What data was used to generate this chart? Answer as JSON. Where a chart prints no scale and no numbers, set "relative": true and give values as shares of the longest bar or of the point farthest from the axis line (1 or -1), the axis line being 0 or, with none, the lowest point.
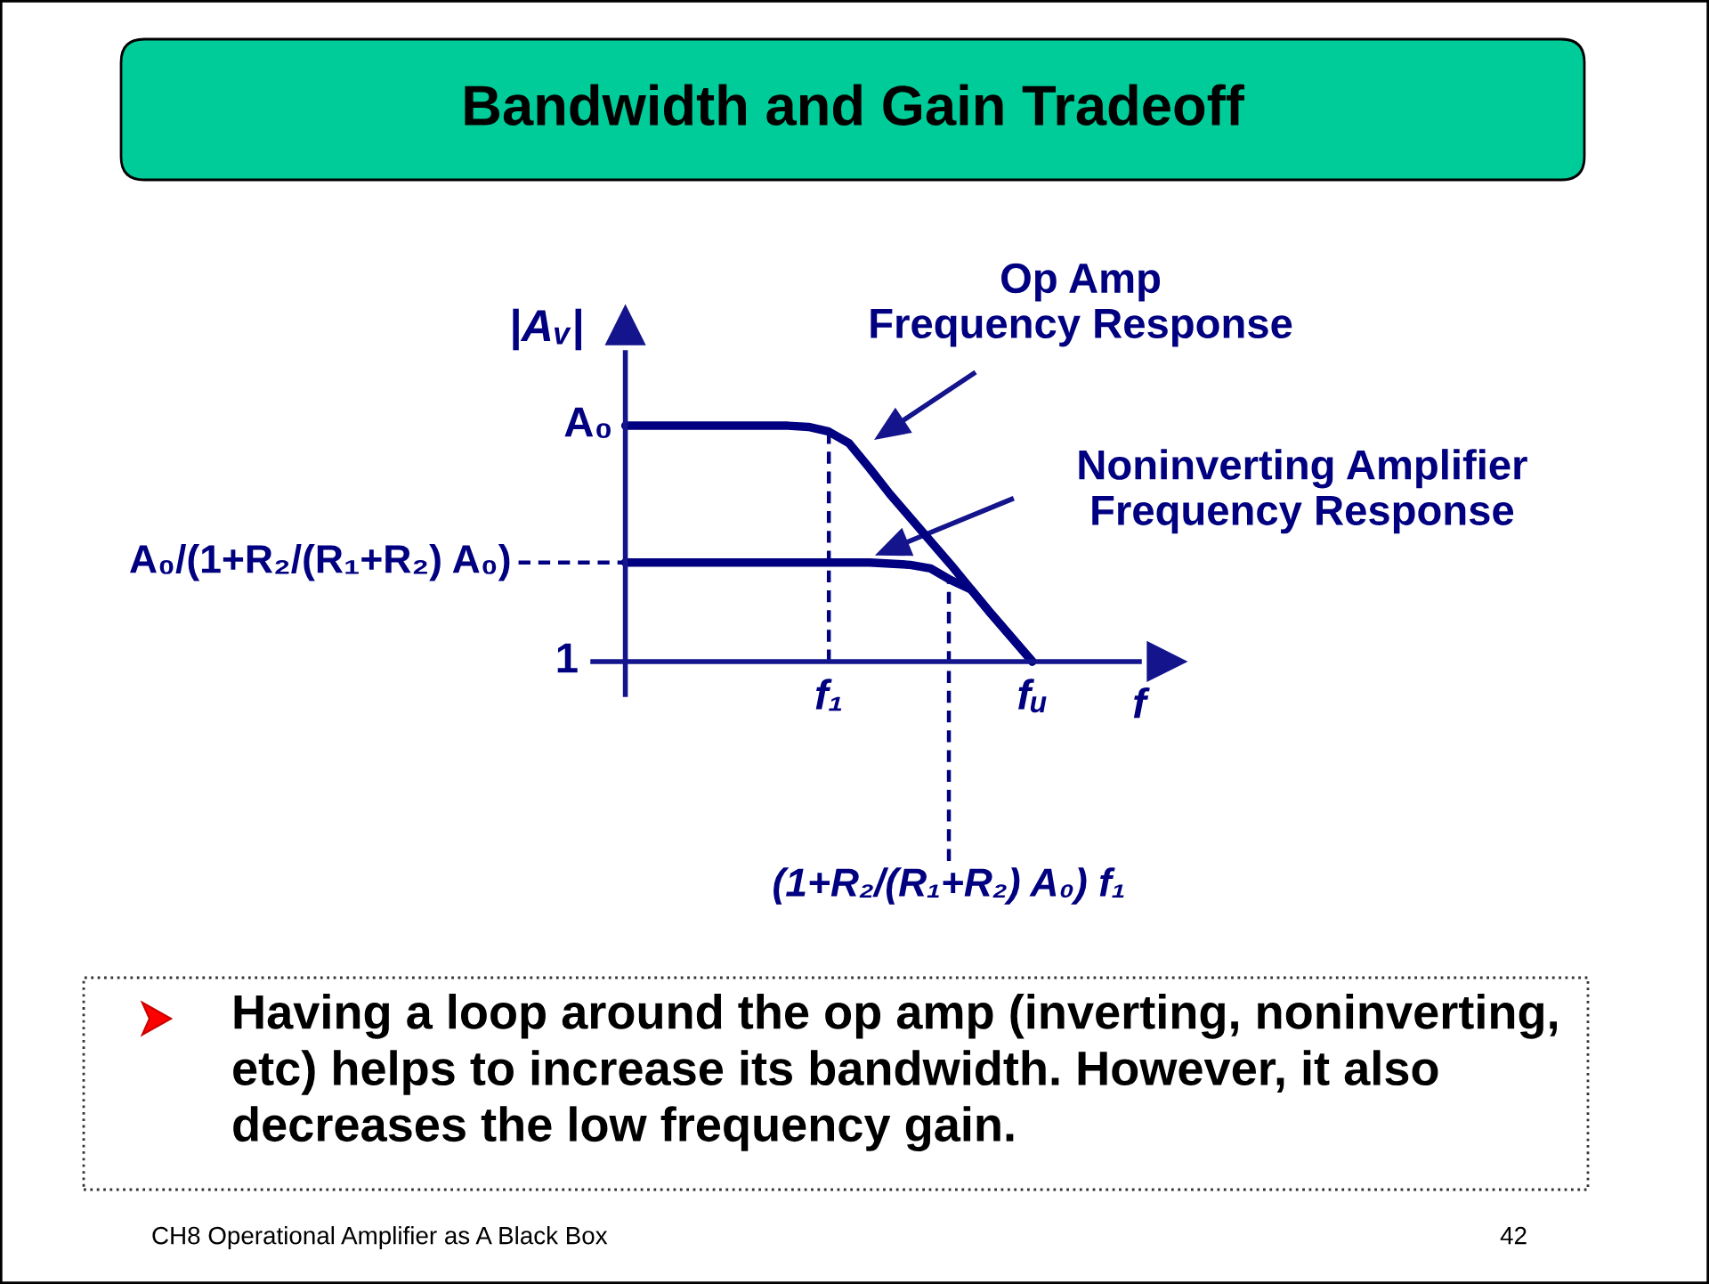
{
  "chart_data": {
    "type": "line",
    "title": "Bandwidth and Gain Tradeoff",
    "xlabel": "f",
    "ylabel": "|Aᵥ|",
    "relative": true,
    "categories": [
      null,
      null,
      null,
      null,
      null,
      null,
      null,
      null,
      null,
      null,
      "f₁",
      null,
      null,
      null,
      null,
      null,
      null,
      null,
      null,
      null,
      "fᵤ"
    ],
    "series": [
      {
        "name": "Op Amp\nFrequency Response",
        "color": "#000080",
        "values": [
          1,
          1,
          1,
          1,
          1,
          1,
          1,
          1,
          1,
          0.995,
          0.975,
          0.925,
          0.82,
          0.71,
          0.61,
          0.51,
          0.41,
          0.305,
          0.2,
          0.1,
          0
        ]
      },
      {
        "name": "Noninverting Amplifier\nFrequency Response",
        "color": "#000080",
        "values": [
          0.42,
          0.42,
          0.42,
          0.42,
          0.42,
          0.42,
          0.42,
          0.42,
          0.42,
          0.42,
          0.42,
          0.42,
          0.42,
          0.415,
          0.41,
          0.395,
          0.345,
          0.305,
          0.2,
          0.1,
          0
        ]
      }
    ],
    "annotations": [
      "A₀",
      "A₀/(1+R₂/(R₁+R₂) A₀)",
      "1",
      "(1+R₂/(R₁+R₂) A₀) f₁",
      "Having a loop around the op amp (inverting, noninverting, etc) helps to increase its bandwidth. However, it also decreases the low frequency gain.",
      "CH8 Operational Amplifier as A Black Box",
      "42"
    ]
  }
}
